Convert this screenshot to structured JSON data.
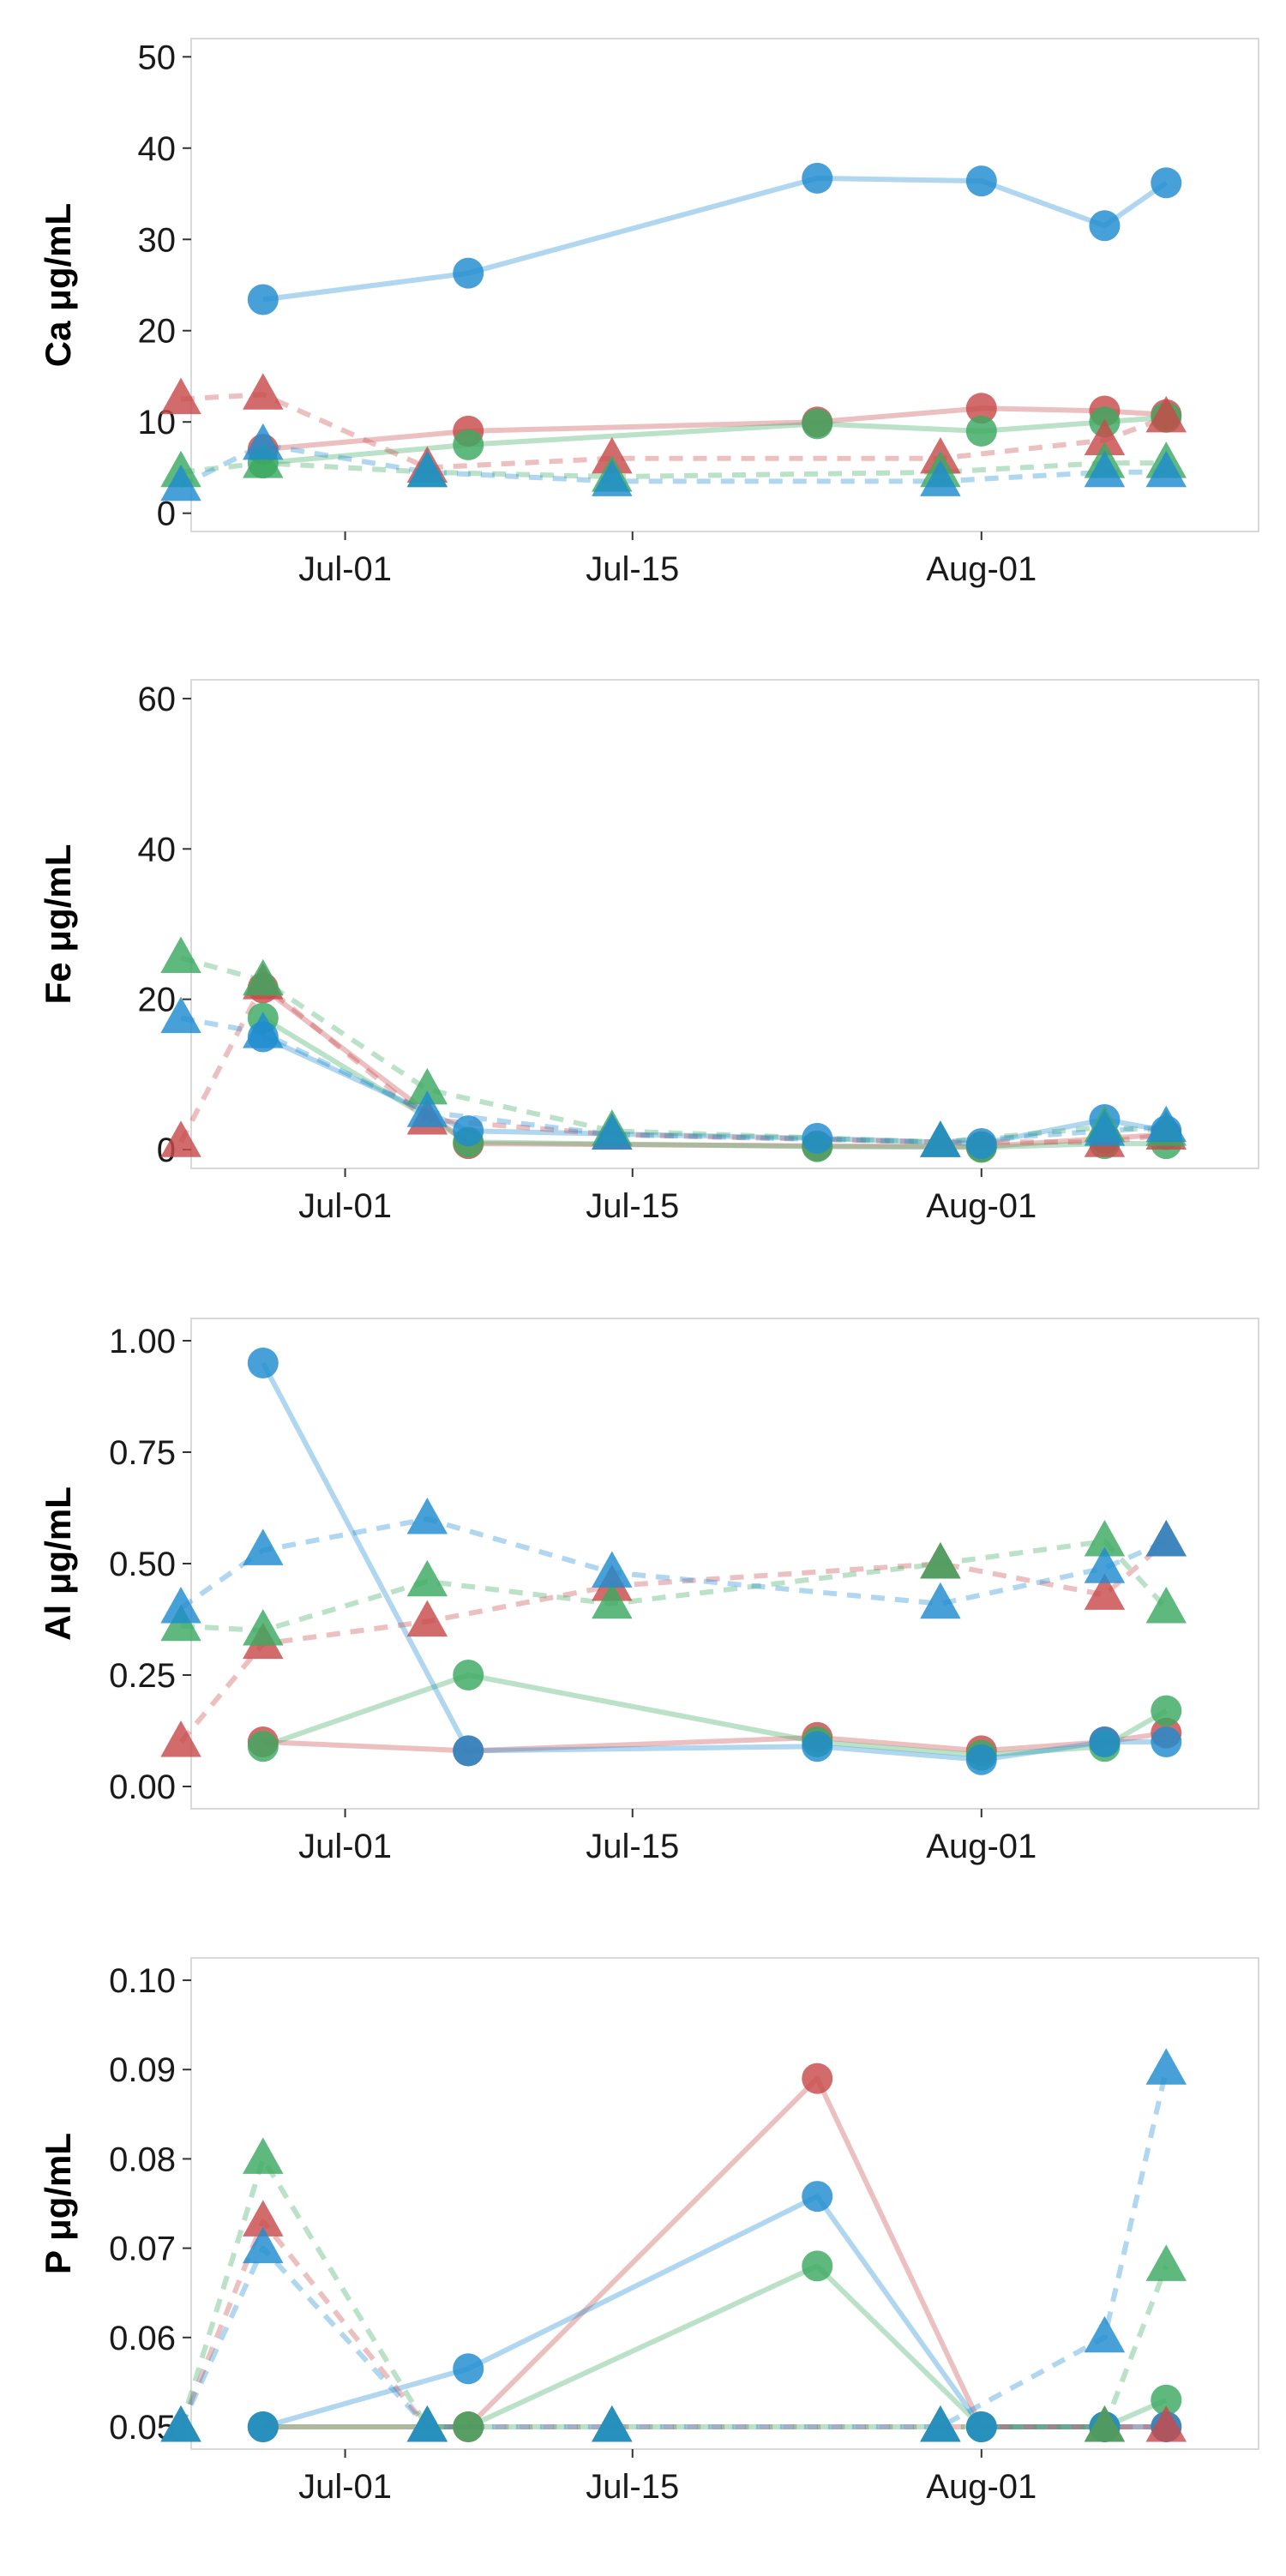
{
  "colors": {
    "red": "#C84B4B",
    "green": "#3CAA62",
    "blue": "#1E8CD0",
    "panel_border": "#d9d9d9",
    "text": "#1a1a1a"
  },
  "x_axis": {
    "tick_labels": [
      "Jul-01",
      "Jul-15",
      "Aug-01"
    ],
    "tick_values": [
      0,
      14,
      31
    ],
    "range": [
      -7.5,
      44.5
    ],
    "value_note": "days relative to Jul-01"
  },
  "chart_data": [
    {
      "type": "line",
      "ylabel": "Ca μg/mL",
      "ylim": [
        -2,
        52
      ],
      "yticks": [
        0,
        10,
        20,
        30,
        40,
        50
      ],
      "ytick_labels": [
        "0",
        "10",
        "20",
        "30",
        "40",
        "50"
      ],
      "x_ticks": [
        "Jul-01",
        "Jul-15",
        "Aug-01"
      ],
      "grid": false,
      "legend": "none",
      "series": [
        {
          "color": "red",
          "marker": "circle",
          "dash": false,
          "x": [
            "Jun-27",
            "Jul-07",
            "Jul-24",
            "Aug-01",
            "Aug-07",
            "Aug-10"
          ],
          "y": [
            7.0,
            9.0,
            10.0,
            11.5,
            11.2,
            10.8
          ]
        },
        {
          "color": "green",
          "marker": "circle",
          "dash": false,
          "x": [
            "Jun-27",
            "Jul-07",
            "Jul-24",
            "Aug-01",
            "Aug-07",
            "Aug-10"
          ],
          "y": [
            5.5,
            7.5,
            9.8,
            9.0,
            10.0,
            10.5
          ]
        },
        {
          "color": "blue",
          "marker": "circle",
          "dash": false,
          "x": [
            "Jun-27",
            "Jul-07",
            "Jul-24",
            "Aug-01",
            "Aug-07",
            "Aug-10"
          ],
          "y": [
            23.4,
            26.3,
            36.7,
            36.4,
            31.5,
            36.2
          ]
        },
        {
          "color": "red",
          "marker": "triangle",
          "dash": true,
          "x": [
            "Jun-23",
            "Jun-27",
            "Jul-05",
            "Jul-14",
            "Jul-30",
            "Aug-07",
            "Aug-10"
          ],
          "y": [
            12.5,
            13.0,
            5.0,
            6.0,
            6.0,
            8.0,
            10.5
          ]
        },
        {
          "color": "green",
          "marker": "triangle",
          "dash": true,
          "x": [
            "Jun-23",
            "Jun-27",
            "Jul-05",
            "Jul-14",
            "Jul-30",
            "Aug-07",
            "Aug-10"
          ],
          "y": [
            4.5,
            5.5,
            4.5,
            4.0,
            4.5,
            5.5,
            5.5
          ]
        },
        {
          "color": "blue",
          "marker": "triangle",
          "dash": true,
          "x": [
            "Jun-23",
            "Jun-27",
            "Jul-05",
            "Jul-14",
            "Jul-30",
            "Aug-07",
            "Aug-10"
          ],
          "y": [
            3.0,
            7.5,
            4.5,
            3.5,
            3.5,
            4.5,
            4.5
          ]
        }
      ]
    },
    {
      "type": "line",
      "ylabel": "Fe μg/mL",
      "ylim": [
        -2.5,
        62.5
      ],
      "yticks": [
        0,
        20,
        40,
        60
      ],
      "ytick_labels": [
        "0",
        "20",
        "40",
        "60"
      ],
      "x_ticks": [
        "Jul-01",
        "Jul-15",
        "Aug-01"
      ],
      "grid": false,
      "legend": "none",
      "series": [
        {
          "color": "red",
          "marker": "circle",
          "dash": false,
          "x": [
            "Jun-27",
            "Jul-07",
            "Jul-24",
            "Aug-01",
            "Aug-07",
            "Aug-10"
          ],
          "y": [
            21.5,
            0.8,
            0.5,
            0.4,
            1.5,
            2.0
          ]
        },
        {
          "color": "green",
          "marker": "circle",
          "dash": false,
          "x": [
            "Jun-27",
            "Jul-07",
            "Jul-24",
            "Aug-01",
            "Aug-07",
            "Aug-10"
          ],
          "y": [
            17.5,
            1.0,
            0.4,
            0.3,
            0.8,
            0.8
          ]
        },
        {
          "color": "blue",
          "marker": "circle",
          "dash": false,
          "x": [
            "Jun-27",
            "Jul-07",
            "Jul-24",
            "Aug-01",
            "Aug-07",
            "Aug-10"
          ],
          "y": [
            15.0,
            2.5,
            1.5,
            0.8,
            4.0,
            2.5
          ]
        },
        {
          "color": "red",
          "marker": "triangle",
          "dash": true,
          "x": [
            "Jun-23",
            "Jun-27",
            "Jul-05",
            "Jul-14",
            "Jul-30",
            "Aug-07",
            "Aug-10"
          ],
          "y": [
            1.0,
            22.0,
            4.0,
            2.0,
            1.0,
            1.0,
            2.0
          ]
        },
        {
          "color": "green",
          "marker": "triangle",
          "dash": true,
          "x": [
            "Jun-23",
            "Jun-27",
            "Jul-05",
            "Jul-14",
            "Jul-30",
            "Aug-07",
            "Aug-10"
          ],
          "y": [
            25.5,
            22.5,
            8.0,
            2.5,
            1.0,
            3.0,
            2.5
          ]
        },
        {
          "color": "blue",
          "marker": "triangle",
          "dash": true,
          "x": [
            "Jun-23",
            "Jun-27",
            "Jul-05",
            "Jul-14",
            "Jul-30",
            "Aug-07",
            "Aug-10"
          ],
          "y": [
            17.5,
            15.5,
            5.0,
            2.0,
            1.0,
            2.5,
            3.0
          ]
        }
      ]
    },
    {
      "type": "line",
      "ylabel": "Al μg/mL",
      "ylim": [
        -0.05,
        1.05
      ],
      "yticks": [
        0,
        0.25,
        0.5,
        0.75,
        1.0
      ],
      "ytick_labels": [
        "0.00",
        "0.25",
        "0.50",
        "0.75",
        "1.00"
      ],
      "x_ticks": [
        "Jul-01",
        "Jul-15",
        "Aug-01"
      ],
      "grid": false,
      "legend": "none",
      "series": [
        {
          "color": "red",
          "marker": "circle",
          "dash": false,
          "x": [
            "Jun-27",
            "Jul-07",
            "Jul-24",
            "Aug-01",
            "Aug-07",
            "Aug-10"
          ],
          "y": [
            0.1,
            0.08,
            0.11,
            0.08,
            0.1,
            0.12
          ]
        },
        {
          "color": "green",
          "marker": "circle",
          "dash": false,
          "x": [
            "Jun-27",
            "Jul-07",
            "Jul-24",
            "Aug-01",
            "Aug-07",
            "Aug-10"
          ],
          "y": [
            0.09,
            0.25,
            0.1,
            0.07,
            0.09,
            0.17
          ]
        },
        {
          "color": "blue",
          "marker": "circle",
          "dash": false,
          "x": [
            "Jun-27",
            "Jul-07",
            "Jul-24",
            "Aug-01",
            "Aug-07",
            "Aug-10"
          ],
          "y": [
            0.95,
            0.08,
            0.09,
            0.06,
            0.1,
            0.1
          ]
        },
        {
          "color": "red",
          "marker": "triangle",
          "dash": true,
          "x": [
            "Jun-23",
            "Jun-27",
            "Jul-05",
            "Jul-14",
            "Jul-30",
            "Aug-07",
            "Aug-10"
          ],
          "y": [
            0.1,
            0.32,
            0.37,
            0.45,
            0.5,
            0.43,
            0.55
          ]
        },
        {
          "color": "green",
          "marker": "triangle",
          "dash": true,
          "x": [
            "Jun-23",
            "Jun-27",
            "Jul-05",
            "Jul-14",
            "Jul-30",
            "Aug-07",
            "Aug-10"
          ],
          "y": [
            0.36,
            0.35,
            0.46,
            0.41,
            0.5,
            0.55,
            0.4
          ]
        },
        {
          "color": "blue",
          "marker": "triangle",
          "dash": true,
          "x": [
            "Jun-23",
            "Jun-27",
            "Jul-05",
            "Jul-14",
            "Jul-30",
            "Aug-07",
            "Aug-10"
          ],
          "y": [
            0.4,
            0.53,
            0.6,
            0.48,
            0.41,
            0.49,
            0.55
          ]
        }
      ]
    },
    {
      "type": "line",
      "ylabel": "P μg/mL",
      "ylim": [
        0.0475,
        0.1025
      ],
      "yticks": [
        0.05,
        0.06,
        0.07,
        0.08,
        0.09,
        0.1
      ],
      "ytick_labels": [
        "0.05",
        "0.06",
        "0.07",
        "0.08",
        "0.09",
        "0.10"
      ],
      "x_ticks": [
        "Jul-01",
        "Jul-15",
        "Aug-01"
      ],
      "grid": false,
      "legend": "none",
      "series": [
        {
          "color": "red",
          "marker": "circle",
          "dash": false,
          "x": [
            "Jun-27",
            "Jul-07",
            "Jul-24",
            "Aug-01",
            "Aug-07",
            "Aug-10"
          ],
          "y": [
            0.05,
            0.05,
            0.089,
            0.05,
            0.05,
            0.05
          ]
        },
        {
          "color": "green",
          "marker": "circle",
          "dash": false,
          "x": [
            "Jun-27",
            "Jul-07",
            "Jul-24",
            "Aug-01",
            "Aug-07",
            "Aug-10"
          ],
          "y": [
            0.05,
            0.05,
            0.068,
            0.05,
            0.05,
            0.053
          ]
        },
        {
          "color": "blue",
          "marker": "circle",
          "dash": false,
          "x": [
            "Jun-27",
            "Jul-07",
            "Jul-24",
            "Aug-01",
            "Aug-07",
            "Aug-10"
          ],
          "y": [
            0.05,
            0.0565,
            0.0758,
            0.05,
            0.05,
            0.05
          ]
        },
        {
          "color": "red",
          "marker": "triangle",
          "dash": true,
          "x": [
            "Jun-23",
            "Jun-27",
            "Jul-05",
            "Jul-14",
            "Jul-30",
            "Aug-07",
            "Aug-10"
          ],
          "y": [
            0.05,
            0.073,
            0.05,
            0.05,
            0.05,
            0.05,
            0.05
          ]
        },
        {
          "color": "green",
          "marker": "triangle",
          "dash": true,
          "x": [
            "Jun-23",
            "Jun-27",
            "Jul-05",
            "Jul-14",
            "Jul-30",
            "Aug-07",
            "Aug-10"
          ],
          "y": [
            0.05,
            0.08,
            0.05,
            0.05,
            0.05,
            0.05,
            0.068
          ]
        },
        {
          "color": "blue",
          "marker": "triangle",
          "dash": true,
          "x": [
            "Jun-23",
            "Jun-27",
            "Jul-05",
            "Jul-14",
            "Jul-30",
            "Aug-07",
            "Aug-10"
          ],
          "y": [
            0.05,
            0.07,
            0.05,
            0.05,
            0.05,
            0.06,
            0.09
          ]
        }
      ]
    }
  ]
}
